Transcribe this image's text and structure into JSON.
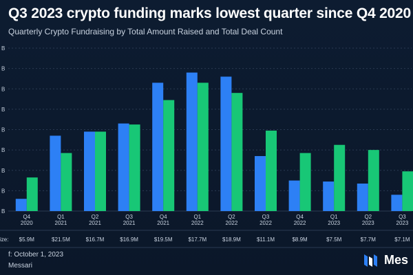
{
  "title": "Q3 2023 crypto funding marks lowest quarter since Q4 2020",
  "subtitle": "Quarterly Crypto Fundraising by Total Amount Raised and Total Deal Count",
  "footer": {
    "date_text": "f: October 1, 2023",
    "source_text": "Messari",
    "brand": "Mes"
  },
  "avg_size_label": "ize:",
  "colors": {
    "amount": "#2d80f5",
    "deals": "#18c776",
    "background": "#0c1a2e",
    "grid": "#2a3a52"
  },
  "chart_data": {
    "type": "bar",
    "categories": [
      [
        "Q4",
        "2020"
      ],
      [
        "Q1",
        "2021"
      ],
      [
        "Q2",
        "2021"
      ],
      [
        "Q3",
        "2021"
      ],
      [
        "Q4",
        "2021"
      ],
      [
        "Q1",
        "2022"
      ],
      [
        "Q2",
        "2022"
      ],
      [
        "Q3",
        "2022"
      ],
      [
        "Q4",
        "2022"
      ],
      [
        "Q1",
        "2023"
      ],
      [
        "Q2",
        "2023"
      ],
      [
        "Q3",
        "2023"
      ]
    ],
    "series": [
      {
        "values": [
          0.6,
          3.7,
          3.9,
          4.3,
          6.3,
          6.8,
          6.6,
          2.7,
          1.5,
          1.45,
          1.35,
          0.8
        ]
      },
      {
        "values": [
          1.65,
          2.85,
          3.9,
          4.25,
          5.45,
          6.3,
          5.8,
          3.95,
          2.85,
          3.25,
          3.0,
          1.95
        ]
      }
    ],
    "avg_deal_sizes": [
      "$5.9M",
      "$21.5M",
      "$16.7M",
      "$16.9M",
      "$19.5M",
      "$17.7M",
      "$18.9M",
      "$11.1M",
      "$8.9M",
      "$7.5M",
      "$7.7M",
      "$7.1M"
    ],
    "y_ticks": [
      "B",
      "B",
      "B",
      "B",
      "B",
      "B",
      "B",
      "B",
      "B"
    ],
    "ylim": [
      0,
      8
    ],
    "grid": true
  }
}
